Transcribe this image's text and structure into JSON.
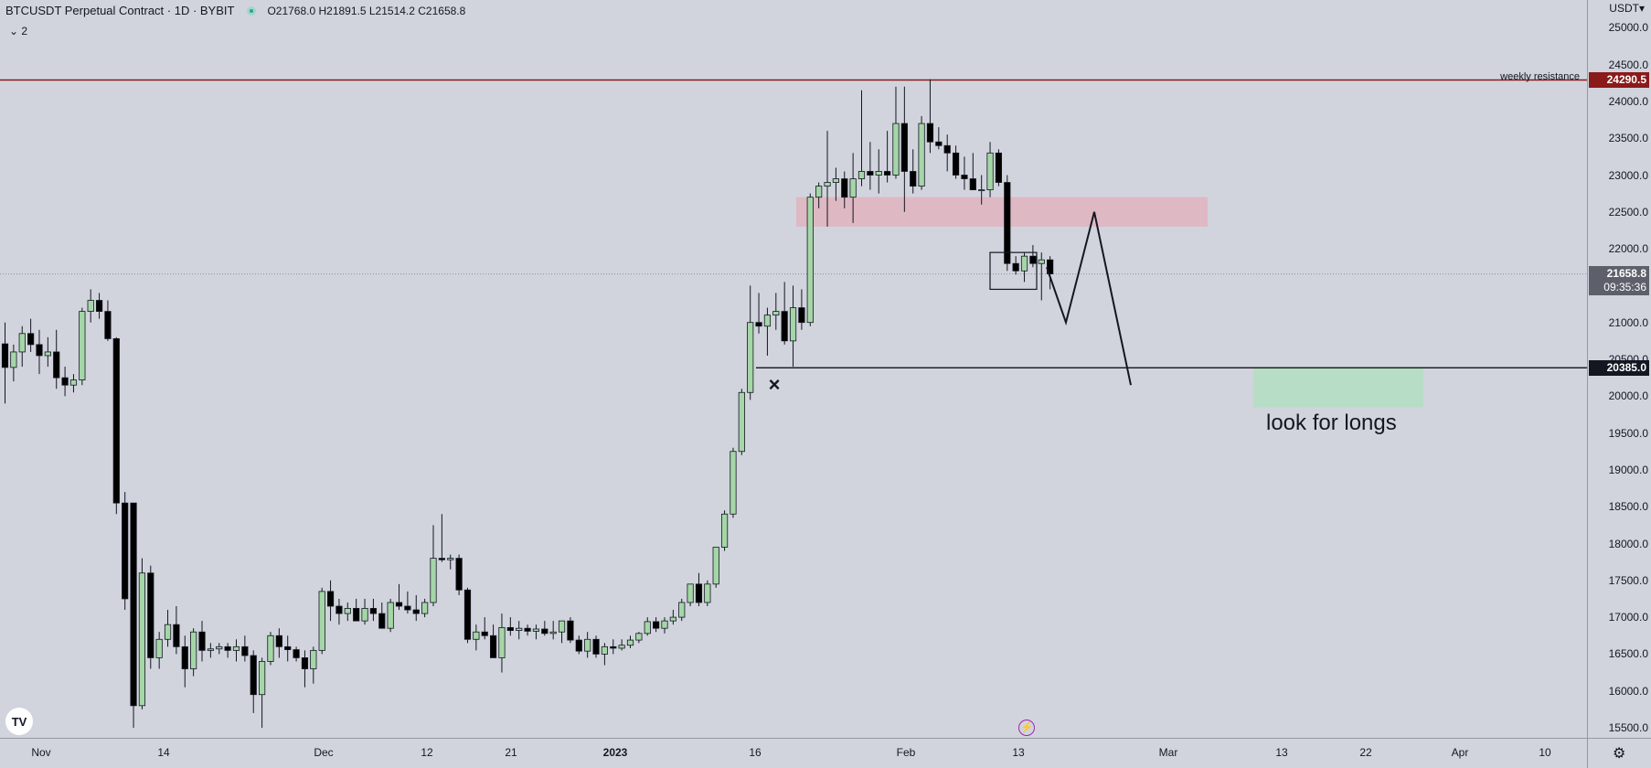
{
  "header": {
    "symbol": "BTCUSDT Perpetual Contract · 1D · BYBIT",
    "ohlc": "O21768.0 H21891.5 L21514.2 C21658.8",
    "indicators_toggle": "⌄ 2"
  },
  "price_axis": {
    "currency": "USDT▾",
    "ticks": [
      "25000.0",
      "24500.0",
      "24000.0",
      "23500.0",
      "23000.0",
      "22500.0",
      "22000.0",
      "21500.0",
      "21000.0",
      "20500.0",
      "20000.0",
      "19500.0",
      "19000.0",
      "18500.0",
      "18000.0",
      "17500.0",
      "17000.0",
      "16500.0",
      "16000.0",
      "15500.0"
    ],
    "badges": {
      "resistance": "24290.5",
      "last_price": "21658.8",
      "countdown": "09:35:36",
      "support": "20385.0"
    }
  },
  "time_axis": {
    "labels": [
      {
        "text": "Nov",
        "bold": false
      },
      {
        "text": "14",
        "bold": false
      },
      {
        "text": "Dec",
        "bold": false
      },
      {
        "text": "12",
        "bold": false
      },
      {
        "text": "21",
        "bold": false
      },
      {
        "text": "2023",
        "bold": true
      },
      {
        "text": "16",
        "bold": false
      },
      {
        "text": "Feb",
        "bold": false
      },
      {
        "text": "13",
        "bold": false
      },
      {
        "text": "Mar",
        "bold": false
      },
      {
        "text": "13",
        "bold": false
      },
      {
        "text": "22",
        "bold": false
      },
      {
        "text": "Apr",
        "bold": false
      },
      {
        "text": "10",
        "bold": false
      }
    ]
  },
  "annotations": {
    "resistance_label": "weekly resistance",
    "longs_label": "look for longs",
    "x_marker": "×"
  },
  "colors": {
    "background": "#d1d4dc",
    "up_candle": "#a5d6a7",
    "down_candle": "#000000",
    "resistance_line": "#8b1a1a",
    "supply_zone": "#e6a5b3",
    "demand_zone": "#b2dfc0",
    "support_line": "#000000"
  },
  "icons": {
    "logo": "tradingview-logo-icon",
    "bolt": "lightning-icon",
    "settings": "gear-icon"
  },
  "chart_data": {
    "type": "candlestick",
    "symbol": "BTCUSDT",
    "interval": "1D",
    "ylim": [
      15300,
      25300
    ],
    "horizontal_levels": [
      24290.5,
      20385.0
    ],
    "last_price": 21658.8,
    "candles": [
      [
        0,
        20710,
        21000,
        19900,
        20390
      ],
      [
        1,
        20390,
        20700,
        20200,
        20600
      ],
      [
        2,
        20600,
        20950,
        20400,
        20850
      ],
      [
        3,
        20850,
        21050,
        20600,
        20700
      ],
      [
        4,
        20700,
        20900,
        20300,
        20550
      ],
      [
        5,
        20550,
        20800,
        20400,
        20600
      ],
      [
        6,
        20600,
        20900,
        20100,
        20250
      ],
      [
        7,
        20250,
        20400,
        20000,
        20150
      ],
      [
        8,
        20150,
        20300,
        20050,
        20220
      ],
      [
        9,
        20220,
        21200,
        20150,
        21150
      ],
      [
        10,
        21150,
        21450,
        21000,
        21300
      ],
      [
        11,
        21300,
        21400,
        21050,
        21150
      ],
      [
        12,
        21150,
        21300,
        20750,
        20780
      ],
      [
        13,
        20780,
        20800,
        18400,
        18550
      ],
      [
        14,
        18550,
        18700,
        17100,
        17250
      ],
      [
        15,
        18550,
        18550,
        15500,
        15800
      ],
      [
        16,
        15800,
        17800,
        15750,
        17600
      ],
      [
        17,
        17600,
        17700,
        16300,
        16450
      ],
      [
        18,
        16450,
        16800,
        16300,
        16700
      ],
      [
        19,
        16700,
        17100,
        16600,
        16900
      ],
      [
        20,
        16900,
        17150,
        16500,
        16600
      ],
      [
        21,
        16600,
        16750,
        16050,
        16300
      ],
      [
        22,
        16300,
        16850,
        16200,
        16800
      ],
      [
        23,
        16800,
        16950,
        16400,
        16550
      ],
      [
        24,
        16550,
        16650,
        16450,
        16570
      ],
      [
        25,
        16570,
        16650,
        16500,
        16600
      ],
      [
        26,
        16600,
        16650,
        16450,
        16550
      ],
      [
        27,
        16550,
        16700,
        16400,
        16600
      ],
      [
        28,
        16600,
        16750,
        16400,
        16480
      ],
      [
        29,
        16480,
        16550,
        15700,
        15950
      ],
      [
        30,
        15950,
        16450,
        15500,
        16400
      ],
      [
        31,
        16400,
        16800,
        16350,
        16750
      ],
      [
        32,
        16750,
        16850,
        16450,
        16600
      ],
      [
        33,
        16600,
        16750,
        16400,
        16560
      ],
      [
        34,
        16560,
        16600,
        16400,
        16450
      ],
      [
        35,
        16450,
        16550,
        16050,
        16300
      ],
      [
        36,
        16300,
        16600,
        16100,
        16550
      ],
      [
        37,
        16550,
        17400,
        16500,
        17350
      ],
      [
        38,
        17350,
        17500,
        16950,
        17150
      ],
      [
        39,
        17150,
        17250,
        16900,
        17050
      ],
      [
        40,
        17050,
        17200,
        16950,
        17120
      ],
      [
        41,
        17120,
        17250,
        16950,
        16950
      ],
      [
        42,
        16950,
        17250,
        16900,
        17120
      ],
      [
        43,
        17120,
        17250,
        16950,
        17050
      ],
      [
        44,
        17050,
        17200,
        16900,
        16850
      ],
      [
        45,
        16850,
        17250,
        16800,
        17200
      ],
      [
        46,
        17200,
        17450,
        17100,
        17150
      ],
      [
        47,
        17150,
        17350,
        17050,
        17100
      ],
      [
        48,
        17100,
        17300,
        16950,
        17050
      ],
      [
        49,
        17050,
        17250,
        17000,
        17200
      ],
      [
        50,
        17200,
        18250,
        17150,
        17800
      ],
      [
        51,
        17800,
        18400,
        17750,
        17780
      ],
      [
        52,
        17780,
        17850,
        17650,
        17800
      ],
      [
        53,
        17800,
        17850,
        17300,
        17370
      ],
      [
        54,
        17370,
        17400,
        16650,
        16700
      ],
      [
        55,
        16700,
        16900,
        16550,
        16800
      ],
      [
        56,
        16800,
        17000,
        16700,
        16750
      ],
      [
        57,
        16750,
        16900,
        16450,
        16450
      ],
      [
        58,
        16450,
        17050,
        16250,
        16860
      ],
      [
        59,
        16860,
        17000,
        16750,
        16820
      ],
      [
        60,
        16820,
        16950,
        16700,
        16850
      ],
      [
        61,
        16850,
        16900,
        16750,
        16810
      ],
      [
        62,
        16810,
        16900,
        16700,
        16840
      ],
      [
        63,
        16840,
        16950,
        16750,
        16780
      ],
      [
        64,
        16780,
        16950,
        16700,
        16800
      ],
      [
        65,
        16800,
        16950,
        16650,
        16950
      ],
      [
        66,
        16950,
        17000,
        16650,
        16690
      ],
      [
        67,
        16690,
        16750,
        16500,
        16540
      ],
      [
        68,
        16540,
        16800,
        16450,
        16700
      ],
      [
        69,
        16700,
        16750,
        16450,
        16500
      ],
      [
        70,
        16500,
        16650,
        16350,
        16600
      ],
      [
        71,
        16600,
        16700,
        16500,
        16580
      ],
      [
        72,
        16580,
        16700,
        16550,
        16620
      ],
      [
        73,
        16620,
        16750,
        16580,
        16690
      ],
      [
        74,
        16690,
        16800,
        16650,
        16780
      ],
      [
        75,
        16780,
        17000,
        16750,
        16940
      ],
      [
        76,
        16940,
        17000,
        16800,
        16850
      ],
      [
        77,
        16850,
        17000,
        16780,
        16950
      ],
      [
        78,
        16950,
        17100,
        16900,
        17000
      ],
      [
        79,
        17000,
        17250,
        16950,
        17200
      ],
      [
        80,
        17200,
        17450,
        17150,
        17450
      ],
      [
        81,
        17450,
        17600,
        17150,
        17200
      ],
      [
        82,
        17200,
        17500,
        17150,
        17450
      ],
      [
        83,
        17450,
        17950,
        17400,
        17950
      ],
      [
        84,
        17950,
        18450,
        17900,
        18400
      ],
      [
        85,
        18400,
        19300,
        18350,
        19250
      ],
      [
        86,
        19250,
        20100,
        19200,
        20050
      ],
      [
        87,
        20050,
        21500,
        19950,
        21000
      ],
      [
        88,
        21000,
        21400,
        20850,
        20950
      ],
      [
        89,
        20950,
        21200,
        20550,
        21100
      ],
      [
        90,
        21100,
        21400,
        20900,
        21150
      ],
      [
        91,
        21150,
        21550,
        20700,
        20750
      ],
      [
        92,
        20750,
        21500,
        20400,
        21200
      ],
      [
        93,
        21200,
        21450,
        20900,
        21000
      ],
      [
        94,
        21000,
        22750,
        20950,
        22700
      ],
      [
        95,
        22700,
        22900,
        22550,
        22850
      ],
      [
        96,
        22850,
        23600,
        22300,
        22900
      ],
      [
        97,
        22900,
        23100,
        22650,
        22950
      ],
      [
        98,
        22950,
        23050,
        22550,
        22700
      ],
      [
        99,
        22700,
        23300,
        22350,
        22950
      ],
      [
        100,
        22950,
        24150,
        22850,
        23050
      ],
      [
        101,
        23050,
        23450,
        22800,
        23000
      ],
      [
        102,
        23000,
        23350,
        22750,
        23050
      ],
      [
        103,
        23050,
        23600,
        22900,
        23000
      ],
      [
        104,
        23000,
        24200,
        22950,
        23700
      ],
      [
        105,
        23700,
        24200,
        22500,
        23050
      ],
      [
        106,
        23050,
        23350,
        22750,
        22850
      ],
      [
        107,
        22850,
        23800,
        22800,
        23700
      ],
      [
        108,
        23700,
        24300,
        23300,
        23450
      ],
      [
        109,
        23450,
        23650,
        23350,
        23400
      ],
      [
        110,
        23400,
        23550,
        23050,
        23300
      ],
      [
        111,
        23300,
        23400,
        22950,
        23000
      ],
      [
        112,
        23000,
        23250,
        22800,
        22950
      ],
      [
        113,
        22950,
        23300,
        22850,
        22800
      ],
      [
        114,
        22800,
        23000,
        22600,
        22800
      ],
      [
        115,
        22800,
        23450,
        22700,
        23300
      ],
      [
        116,
        23300,
        23350,
        22850,
        22900
      ],
      [
        117,
        22900,
        23000,
        21700,
        21800
      ],
      [
        118,
        21800,
        21900,
        21650,
        21700
      ],
      [
        119,
        21700,
        21950,
        21550,
        21900
      ],
      [
        120,
        21900,
        22050,
        21750,
        21800
      ],
      [
        121,
        21800,
        21950,
        21300,
        21850
      ],
      [
        122,
        21850,
        21900,
        21450,
        21660
      ]
    ],
    "projection_path": [
      21750,
      21000,
      22500,
      20150
    ],
    "zones": [
      {
        "name": "supply",
        "from": 22300,
        "to": 22700
      },
      {
        "name": "demand",
        "from": 19850,
        "to": 20385
      }
    ]
  }
}
